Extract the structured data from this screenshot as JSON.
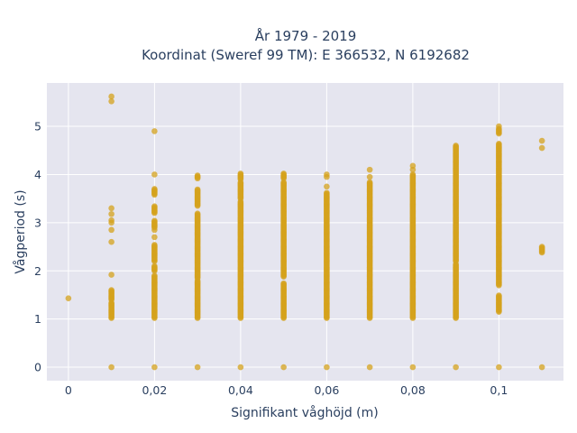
{
  "chart_data": {
    "type": "scatter",
    "title_line1": "År 1979 - 2019",
    "title_line2": "Koordinat (Sweref 99 TM): E 366532, N 6192682",
    "xlabel": "Signifikant våghöjd (m)",
    "ylabel": "Vågperiod (s)",
    "xlim": [
      -0.005,
      0.115
    ],
    "ylim": [
      -0.28,
      5.9
    ],
    "x_ticks": [
      0,
      0.02,
      0.04,
      0.06,
      0.08,
      0.1
    ],
    "x_tick_labels": [
      "0",
      "0,02",
      "0,04",
      "0,06",
      "0,08",
      "0,1"
    ],
    "y_ticks": [
      0,
      1,
      2,
      3,
      4,
      5
    ],
    "y_tick_labels": [
      "0",
      "1",
      "2",
      "3",
      "4",
      "5"
    ],
    "grid": true,
    "colors": {
      "marker": "#d4a21c",
      "plot_bg": "#e5e5ef",
      "grid": "#ffffff",
      "text": "#2a3f5f"
    },
    "series": [
      {
        "columns": [
          {
            "x": 0,
            "isolated": [
              1.43
            ]
          },
          {
            "x": 0.01,
            "ranges": [
              [
                1.02,
                1.35
              ],
              [
                1.4,
                1.6
              ]
            ],
            "isolated": [
              0,
              1.92,
              2.6,
              2.85,
              3.0,
              3.05,
              3.18,
              3.3,
              5.52,
              5.62
            ]
          },
          {
            "x": 0.02,
            "ranges": [
              [
                1.02,
                1.9
              ],
              [
                2.0,
                2.1
              ],
              [
                2.2,
                2.55
              ],
              [
                2.9,
                3.05
              ],
              [
                3.2,
                3.35
              ],
              [
                3.58,
                3.7
              ]
            ],
            "isolated": [
              0,
              2.7,
              2.85,
              4.0,
              4.9
            ]
          },
          {
            "x": 0.03,
            "ranges": [
              [
                1.02,
                1.8
              ],
              [
                1.85,
                3.2
              ],
              [
                3.35,
                3.7
              ],
              [
                3.92,
                3.98
              ]
            ],
            "isolated": [
              0
            ]
          },
          {
            "x": 0.04,
            "ranges": [
              [
                1.02,
                3.45
              ],
              [
                3.5,
                3.85
              ],
              [
                3.9,
                4.03
              ]
            ],
            "isolated": [
              0
            ]
          },
          {
            "x": 0.05,
            "ranges": [
              [
                1.02,
                1.75
              ],
              [
                1.88,
                3.85
              ],
              [
                3.92,
                4.03
              ]
            ],
            "isolated": [
              0
            ]
          },
          {
            "x": 0.06,
            "ranges": [
              [
                1.02,
                3.62
              ]
            ],
            "isolated": [
              0,
              3.75,
              3.95,
              4.0
            ]
          },
          {
            "x": 0.07,
            "ranges": [
              [
                1.02,
                3.85
              ]
            ],
            "isolated": [
              0,
              3.95,
              4.1
            ]
          },
          {
            "x": 0.08,
            "ranges": [
              [
                1.02,
                4.0
              ]
            ],
            "isolated": [
              0,
              4.1,
              4.18
            ]
          },
          {
            "x": 0.09,
            "ranges": [
              [
                1.02,
                2.15
              ],
              [
                2.2,
                4.6
              ]
            ],
            "isolated": [
              0
            ]
          },
          {
            "x": 0.1,
            "ranges": [
              [
                1.15,
                1.5
              ],
              [
                1.7,
                4.65
              ],
              [
                4.85,
                4.95
              ]
            ],
            "isolated": [
              0,
              5.0
            ]
          },
          {
            "x": 0.11,
            "ranges": [
              [
                2.38,
                2.5
              ]
            ],
            "isolated": [
              0,
              4.55,
              4.7
            ]
          }
        ]
      }
    ]
  }
}
